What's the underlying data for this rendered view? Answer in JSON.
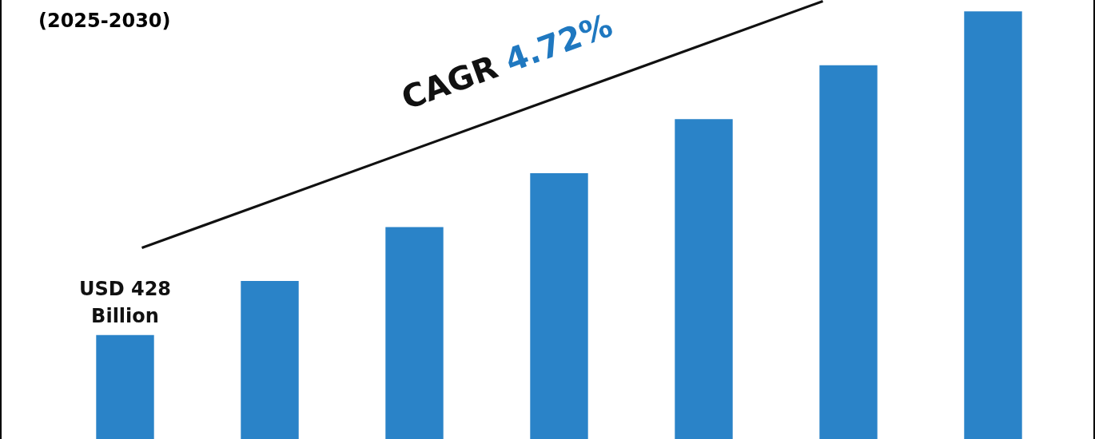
{
  "chart_data": {
    "type": "bar",
    "title": "(2025-2030)",
    "categories": [
      null,
      null,
      null,
      null,
      null,
      null,
      null
    ],
    "values": [
      428,
      650,
      872,
      1094,
      1316,
      1538,
      1760
    ],
    "color": "#2a83c8",
    "value_labels": [
      "USD 428 Billion",
      null,
      null,
      null,
      null,
      null,
      null
    ],
    "annotations": [
      "CAGR 4.72%"
    ]
  }
}
